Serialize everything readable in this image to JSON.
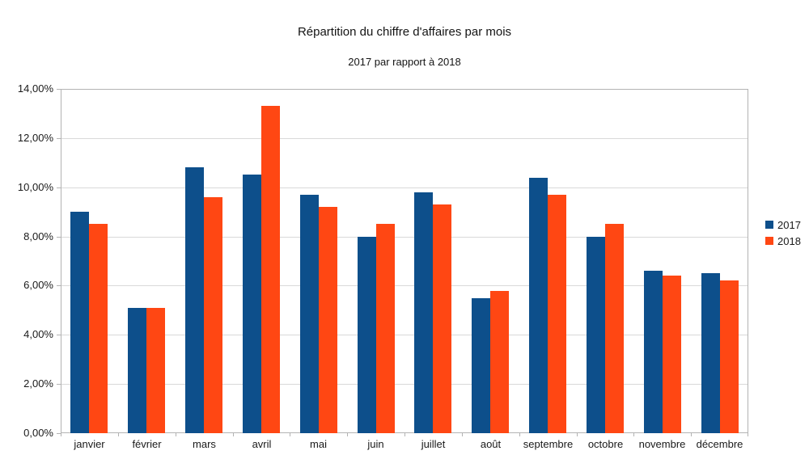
{
  "chart_data": {
    "type": "bar",
    "title": "Répartition du chiffre d'affaires par mois",
    "subtitle": "2017 par rapport à 2018",
    "xlabel": "",
    "ylabel": "",
    "unit": "%",
    "categories": [
      "janvier",
      "février",
      "mars",
      "avril",
      "mai",
      "juin",
      "juillet",
      "août",
      "septembre",
      "octobre",
      "novembre",
      "décembre"
    ],
    "series": [
      {
        "name": "2017",
        "color": "#0d4f8b",
        "values": [
          9.0,
          5.1,
          10.8,
          10.5,
          9.7,
          8.0,
          9.8,
          5.5,
          10.4,
          8.0,
          6.6,
          6.5
        ]
      },
      {
        "name": "2018",
        "color": "#ff4713",
        "values": [
          8.5,
          5.1,
          9.6,
          13.3,
          9.2,
          8.5,
          9.3,
          5.8,
          9.7,
          8.5,
          6.4,
          6.2
        ]
      }
    ],
    "ylim": [
      0,
      14
    ],
    "y_tick_step": 2,
    "y_tick_labels": [
      "0,00%",
      "2,00%",
      "4,00%",
      "6,00%",
      "8,00%",
      "10,00%",
      "12,00%",
      "14,00%"
    ],
    "grid": true,
    "legend_position": "right",
    "legend_items": [
      "2017",
      "2018"
    ],
    "colors": {
      "background": "#ffffff",
      "gridline": "#d9d9d9",
      "axis": "#b3b3b3",
      "text": "#1a1a1a"
    }
  }
}
